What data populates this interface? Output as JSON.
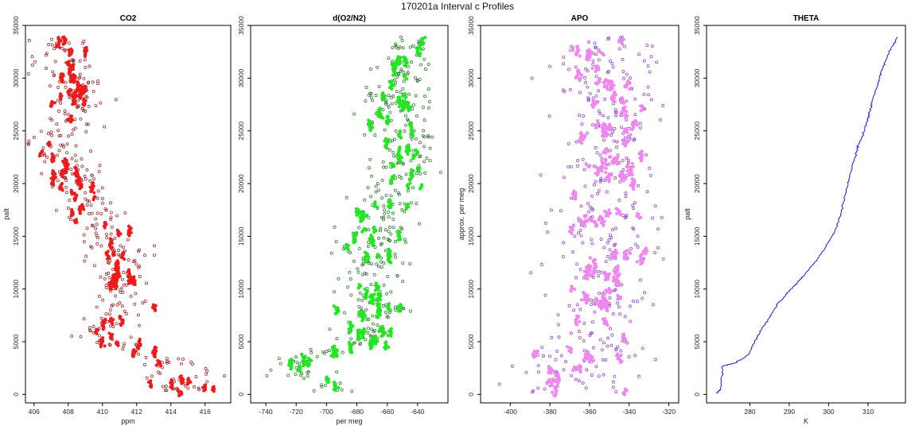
{
  "figure": {
    "title": "170201a   Interval c Profiles"
  },
  "chart_data": [
    {
      "type": "scatter",
      "id": "co2",
      "title": "CO2",
      "xlabel": "ppm",
      "ylabel": "palt",
      "xlim": [
        405.5,
        417.5
      ],
      "ylim": [
        -800,
        35000
      ],
      "xticks": [
        "406",
        "408",
        "410",
        "412",
        "414",
        "416"
      ],
      "yticks": [
        "0",
        "5000",
        "10000",
        "15000",
        "20000",
        "25000",
        "30000",
        "35000"
      ],
      "marker": "open-circle",
      "colors": {
        "outline": "#8b1a1a",
        "fill": "#ee1c1c"
      },
      "profile": [
        [
          407.2,
          33900
        ],
        [
          407.6,
          32000
        ],
        [
          408.2,
          30000
        ],
        [
          408.6,
          28000
        ],
        [
          408.4,
          26000
        ],
        [
          407.3,
          24000
        ],
        [
          407.7,
          22000
        ],
        [
          408.3,
          20000
        ],
        [
          409.4,
          18000
        ],
        [
          410.1,
          16000
        ],
        [
          410.6,
          14000
        ],
        [
          411.0,
          12000
        ],
        [
          410.9,
          10000
        ],
        [
          411.1,
          8000
        ],
        [
          409.6,
          6000
        ],
        [
          410.6,
          5000
        ],
        [
          412.6,
          4000
        ],
        [
          413.8,
          3000
        ],
        [
          414.7,
          2000
        ],
        [
          414.6,
          1000
        ],
        [
          414.8,
          200
        ]
      ],
      "spread": 0.9
    },
    {
      "type": "scatter",
      "id": "do2n2",
      "title": "d(O2/N2)",
      "xlabel": "per meg",
      "ylabel": "",
      "xlim": [
        -750,
        -620
      ],
      "ylim": [
        -800,
        35000
      ],
      "xticks": [
        "-740",
        "-720",
        "-700",
        "-680",
        "-660",
        "-640"
      ],
      "yticks": [
        "0",
        "5000",
        "10000",
        "15000",
        "20000",
        "25000",
        "30000",
        "35000"
      ],
      "marker": "open-circle",
      "colors": {
        "outline": "#1e6b1e",
        "fill": "#22e622"
      },
      "profile": [
        [
          -650,
          33900
        ],
        [
          -652,
          31000
        ],
        [
          -655,
          28000
        ],
        [
          -652,
          26000
        ],
        [
          -650,
          24000
        ],
        [
          -648,
          22000
        ],
        [
          -653,
          20000
        ],
        [
          -662,
          18000
        ],
        [
          -665,
          16000
        ],
        [
          -670,
          14000
        ],
        [
          -672,
          12000
        ],
        [
          -671,
          10000
        ],
        [
          -669,
          8000
        ],
        [
          -672,
          6000
        ],
        [
          -675,
          5000
        ],
        [
          -686,
          4500
        ],
        [
          -700,
          4000
        ],
        [
          -715,
          3200
        ],
        [
          -722,
          2500
        ],
        [
          -712,
          1500
        ],
        [
          -704,
          800
        ],
        [
          -700,
          200
        ]
      ],
      "spread": 11
    },
    {
      "type": "scatter",
      "id": "apo",
      "title": "APO",
      "xlabel": "",
      "ylabel": "approx. per meg",
      "xlim": [
        -415,
        -315
      ],
      "ylim": [
        -800,
        35000
      ],
      "xticks": [
        "-400",
        "-380",
        "-360",
        "-340",
        "-320"
      ],
      "yticks": [
        "0",
        "5000",
        "10000",
        "15000",
        "20000",
        "25000",
        "30000",
        "35000"
      ],
      "marker": "open-circle",
      "colors": {
        "outline": "#8a34c8",
        "fill": "#ee88ee"
      },
      "profile": [
        [
          -352,
          33900
        ],
        [
          -350,
          31000
        ],
        [
          -348,
          28000
        ],
        [
          -349,
          26000
        ],
        [
          -347,
          24000
        ],
        [
          -348,
          22000
        ],
        [
          -350,
          20000
        ],
        [
          -352,
          18000
        ],
        [
          -352,
          16000
        ],
        [
          -352,
          14000
        ],
        [
          -353,
          12000
        ],
        [
          -354,
          10000
        ],
        [
          -354,
          8000
        ],
        [
          -356,
          6000
        ],
        [
          -358,
          4000
        ],
        [
          -368,
          3000
        ],
        [
          -375,
          2000
        ],
        [
          -370,
          1000
        ],
        [
          -366,
          200
        ]
      ],
      "spread": 13
    },
    {
      "type": "line",
      "id": "theta",
      "title": "THETA",
      "xlabel": "K",
      "ylabel": "palt",
      "xlim": [
        269,
        319.5
      ],
      "ylim": [
        -800,
        35000
      ],
      "xticks": [
        "280",
        "290",
        "300",
        "310"
      ],
      "yticks": [
        "0",
        "5000",
        "10000",
        "15000",
        "20000",
        "25000",
        "30000",
        "35000"
      ],
      "colors": {
        "line": "#1a1ad6"
      },
      "x": [
        271.5,
        272.6,
        273.1,
        276.5,
        279.7,
        281.5,
        283.0,
        285.0,
        287.0,
        289.8,
        292.6,
        295.8,
        299.0,
        301.5,
        303.0,
        304.2,
        305.3,
        306.5,
        307.3,
        308.4,
        309.5,
        310.4,
        311.2,
        312.5,
        313.4,
        315.0,
        317.5
      ],
      "y": [
        100,
        500,
        2700,
        3000,
        3800,
        5200,
        6200,
        7300,
        8600,
        9700,
        10800,
        12200,
        13800,
        15400,
        17100,
        18900,
        20600,
        22300,
        23400,
        24400,
        25600,
        26800,
        28000,
        29400,
        30600,
        32200,
        33900
      ]
    }
  ]
}
